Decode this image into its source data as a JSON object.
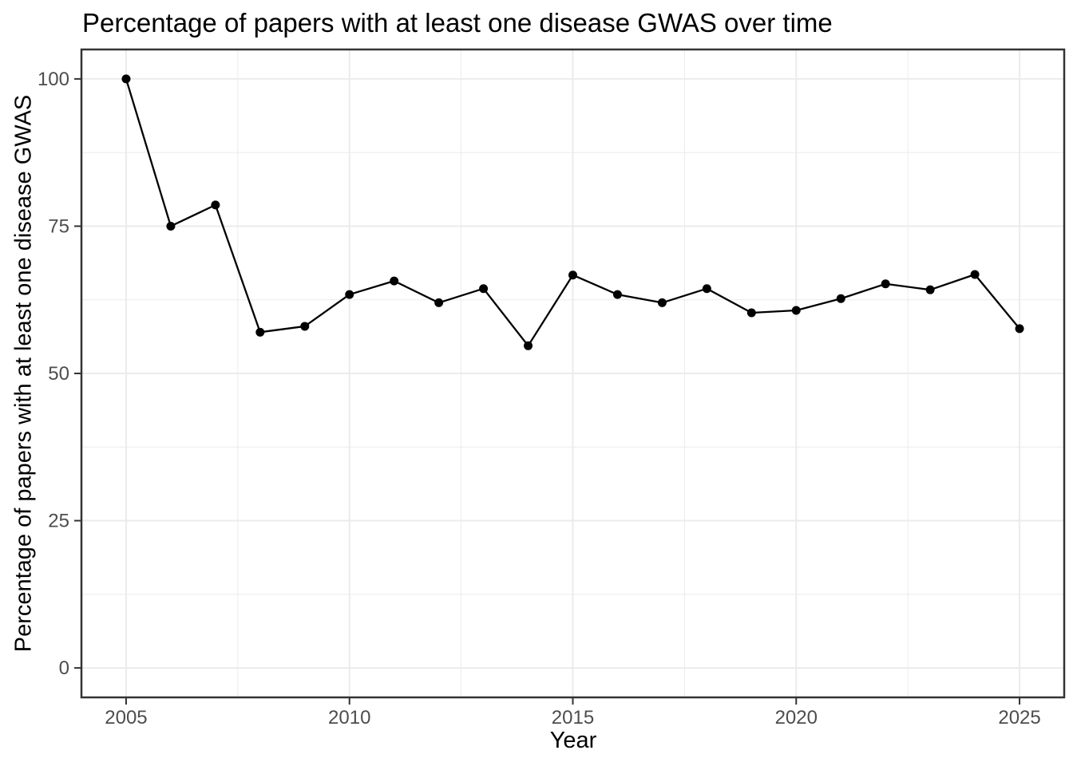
{
  "chart_data": {
    "type": "line",
    "title": "Percentage of papers with at least one disease GWAS over time",
    "xlabel": "Year",
    "ylabel": "Percentage of papers with at least one disease GWAS",
    "x": [
      2005,
      2006,
      2007,
      2008,
      2009,
      2010,
      2011,
      2012,
      2013,
      2014,
      2015,
      2016,
      2017,
      2018,
      2019,
      2020,
      2021,
      2022,
      2023,
      2024,
      2025
    ],
    "y": [
      100,
      75,
      78.6,
      57,
      58,
      63.4,
      65.7,
      62,
      64.4,
      54.7,
      66.7,
      63.4,
      62,
      64.4,
      60.3,
      60.7,
      62.7,
      65.2,
      64.2,
      66.8,
      57.6
    ],
    "series_name": "Percentage of papers with at least one disease GWAS",
    "xticks": [
      2005,
      2010,
      2015,
      2020,
      2025
    ],
    "yticks": [
      0,
      25,
      50,
      75,
      100
    ],
    "minor_xticks": [
      2007.5,
      2012.5,
      2017.5,
      2022.5
    ],
    "minor_yticks": [
      12.5,
      37.5,
      62.5,
      87.5
    ],
    "xlim": [
      2004,
      2026
    ],
    "ylim": [
      -5,
      105
    ],
    "grid": "major+minor",
    "legend": "none",
    "point_marker": "filled-circle"
  },
  "style": {
    "line_color": "#000000",
    "point_color": "#000000",
    "grid_color": "#EBEBEB",
    "border_color": "#333333",
    "tick_color": "#333333",
    "tick_label_color": "#4D4D4D",
    "title_color": "#000000",
    "panel_bg": "#FFFFFF",
    "page_bg": "#FFFFFF"
  }
}
